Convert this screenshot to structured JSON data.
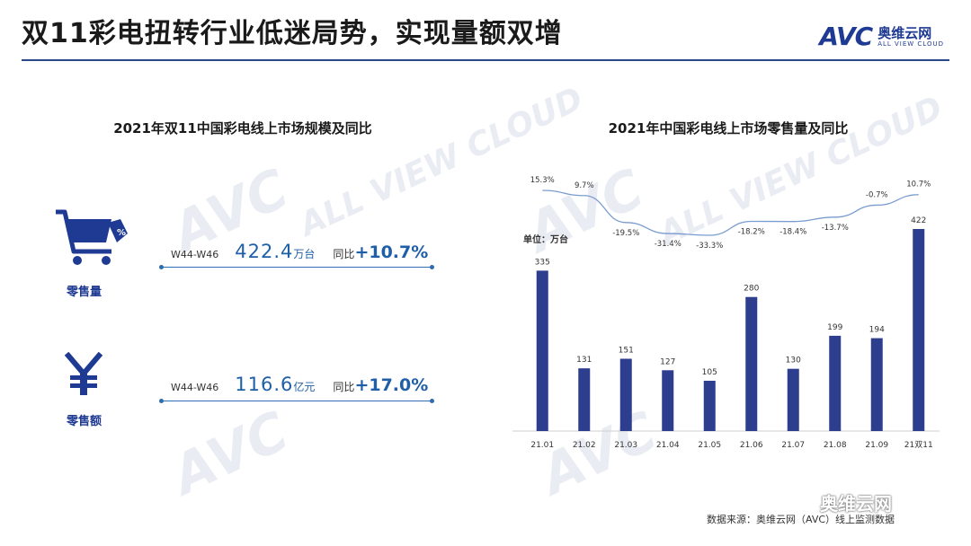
{
  "header": {
    "title": "双11彩电扭转行业低迷局势，实现量额双增",
    "logo_mark": "AVC",
    "logo_cn": "奥维云网",
    "logo_en": "ALL VIEW CLOUD"
  },
  "left_panel": {
    "title": "2021年双11中国彩电线上市场规模及同比",
    "metrics": [
      {
        "caption": "零售量",
        "icon": "shopping-cart-icon",
        "period": "W44-W46",
        "value": "422.4",
        "unit": "万台",
        "yoy_label": "同比",
        "yoy": "+10.7%"
      },
      {
        "caption": "零售额",
        "icon": "yuan-icon",
        "period": "W44-W46",
        "value": "116.6",
        "unit": "亿元",
        "yoy_label": "同比",
        "yoy": "+17.0%"
      }
    ]
  },
  "right_panel": {
    "title": "2021年中国彩电线上市场零售量及同比",
    "unit_label": "单位：万台"
  },
  "chart_data": {
    "type": "bar",
    "title": "2021年中国彩电线上市场零售量及同比",
    "categories": [
      "21.01",
      "21.02",
      "21.03",
      "21.04",
      "21.05",
      "21.06",
      "21.07",
      "21.08",
      "21.09",
      "21双11"
    ],
    "series": [
      {
        "values": [
          335,
          131,
          151,
          127,
          105,
          280,
          130,
          199,
          194,
          422
        ],
        "color": "#2e3e8f"
      }
    ],
    "yoy": {
      "values": [
        15.3,
        9.7,
        -19.5,
        -31.4,
        -33.3,
        -18.2,
        -18.4,
        -13.7,
        -0.7,
        10.7
      ],
      "labels": [
        "15.3%",
        "9.7%",
        "-19.5%",
        "-31.4%",
        "-33.3%",
        "-18.2%",
        "-18.4%",
        "-13.7%",
        "-0.7%",
        "10.7%"
      ],
      "color": "#7a9bd0"
    },
    "ylabel": "单位：万台",
    "grid": false,
    "legend": "none"
  },
  "footer": {
    "source": "数据来源：奥维云网（AVC）线上监测数据",
    "wechat": "奥维云网"
  }
}
